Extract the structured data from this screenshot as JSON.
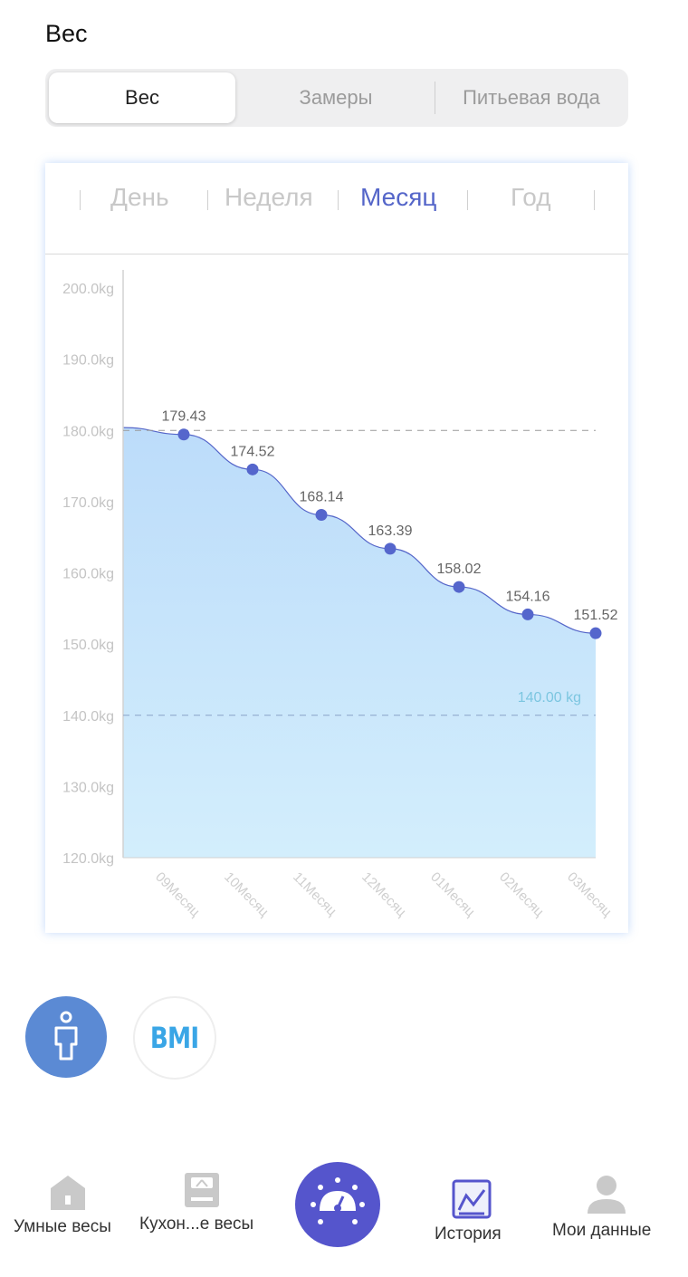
{
  "header": {
    "title": "Вес"
  },
  "segment": {
    "items": [
      "Вес",
      "Замеры",
      "Питьевая вода"
    ],
    "active": 0
  },
  "period": {
    "tabs": [
      "День",
      "Неделя",
      "Месяц",
      "Год"
    ],
    "active": 2
  },
  "chart_data": {
    "type": "area",
    "x": [
      "09Месяц",
      "10Месяц",
      "11Месяц",
      "12Месяц",
      "01Месяц",
      "02Месяц",
      "03Месяц"
    ],
    "series": [
      {
        "values": [
          179.43,
          174.52,
          168.14,
          163.39,
          158.02,
          154.16,
          151.52
        ]
      }
    ],
    "start_value": 180.4,
    "point_labels": [
      "179.43",
      "174.52",
      "168.14",
      "163.39",
      "158.02",
      "154.16",
      "151.52"
    ],
    "y_ticks": [
      "200.0kg",
      "190.0kg",
      "180.0kg",
      "170.0kg",
      "160.0kg",
      "150.0kg",
      "140.0kg",
      "130.0kg",
      "120.0kg"
    ],
    "ylim": [
      120,
      200
    ],
    "target_value": 140,
    "target_label": "140.00 kg",
    "colors": {
      "line": "#5566c9",
      "point": "#5566cc",
      "fill_top": "#bcdcfa",
      "fill_bottom": "#d3eefc",
      "target_label": "#7cc6e0"
    }
  },
  "buttons": {
    "bmi_label": "BMI",
    "body_icon": "person-icon"
  },
  "tabbar": {
    "items": [
      {
        "label": "Умные весы",
        "icon": "home-icon"
      },
      {
        "label": "Кухон...е весы",
        "icon": "scale-icon"
      },
      {
        "label": "",
        "icon": "gauge-icon"
      },
      {
        "label": "История",
        "icon": "history-chart-icon"
      },
      {
        "label": "Мои данные",
        "icon": "user-icon"
      }
    ]
  }
}
